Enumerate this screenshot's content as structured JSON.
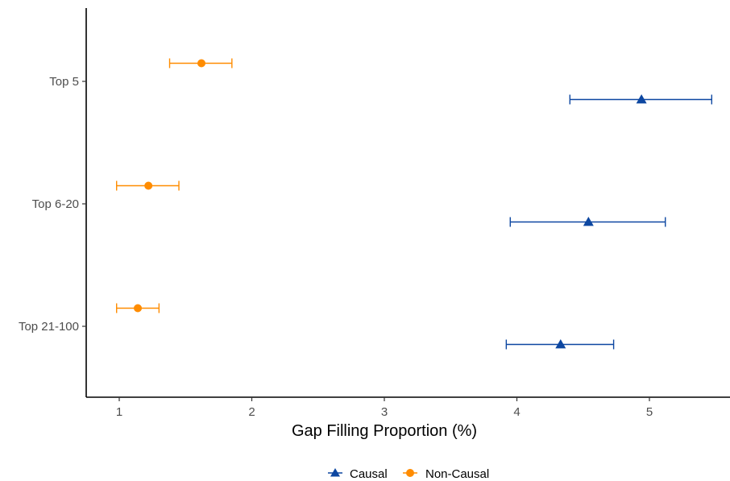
{
  "chart_data": {
    "type": "scatter",
    "orientation": "horizontal-dot-with-error-bars",
    "title": "",
    "xlabel": "Gap Filling Proportion (%)",
    "ylabel": "",
    "xlim": [
      0.75,
      5.5
    ],
    "x_ticks": [
      1,
      2,
      3,
      4,
      5
    ],
    "categories": [
      "Top 5",
      "Top 6-20",
      "Top 21-100"
    ],
    "grid": false,
    "legend_position": "bottom",
    "series": [
      {
        "name": "Causal",
        "marker": "triangle-icon",
        "color": "#0d47a1",
        "values": [
          {
            "category": "Top 5",
            "x": 4.94,
            "low": 4.4,
            "high": 5.47
          },
          {
            "category": "Top 6-20",
            "x": 4.54,
            "low": 3.95,
            "high": 5.12
          },
          {
            "category": "Top 21-100",
            "x": 4.33,
            "low": 3.92,
            "high": 4.73
          }
        ]
      },
      {
        "name": "Non-Causal",
        "marker": "circle-icon",
        "color": "#ff8c00",
        "values": [
          {
            "category": "Top 5",
            "x": 1.62,
            "low": 1.38,
            "high": 1.85
          },
          {
            "category": "Top 6-20",
            "x": 1.22,
            "low": 0.98,
            "high": 1.45
          },
          {
            "category": "Top 21-100",
            "x": 1.14,
            "low": 0.98,
            "high": 1.3
          }
        ]
      }
    ]
  }
}
